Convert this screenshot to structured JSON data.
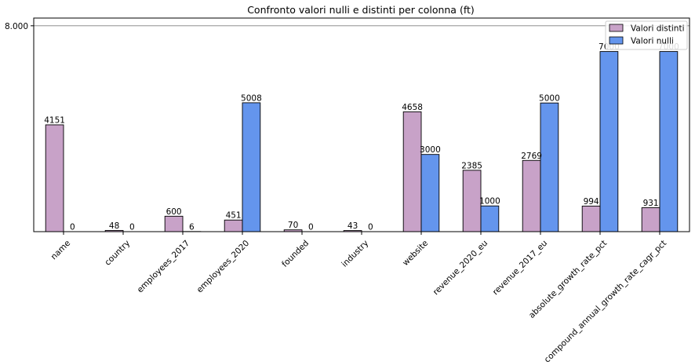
{
  "chart_data": {
    "type": "bar",
    "title": "Confronto valori nulli e distinti per colonna (ft)",
    "xlabel": "",
    "ylabel": "",
    "categories": [
      "name",
      "country",
      "employees_2017",
      "employees_2020",
      "founded",
      "industry",
      "website",
      "revenue_2020_eu",
      "revenue_2017_eu",
      "absolute_growth_rate_pct",
      "compound_annual_growth_rate_cagr_pct"
    ],
    "series": [
      {
        "name": "Valori distinti",
        "color": "#c8a2c8",
        "values": [
          4151,
          48,
          600,
          451,
          70,
          43,
          4658,
          2385,
          2769,
          994,
          931
        ]
      },
      {
        "name": "Valori nulli",
        "color": "#6495ed",
        "values": [
          0,
          0,
          6,
          5008,
          0,
          0,
          3000,
          1000,
          5000,
          7000,
          7000
        ]
      }
    ],
    "ylim": [
      0,
      8300
    ],
    "yticks": [
      8000
    ],
    "ytick_labels": [
      "8.000"
    ],
    "grid": "horizontal",
    "legend": "top-right"
  }
}
